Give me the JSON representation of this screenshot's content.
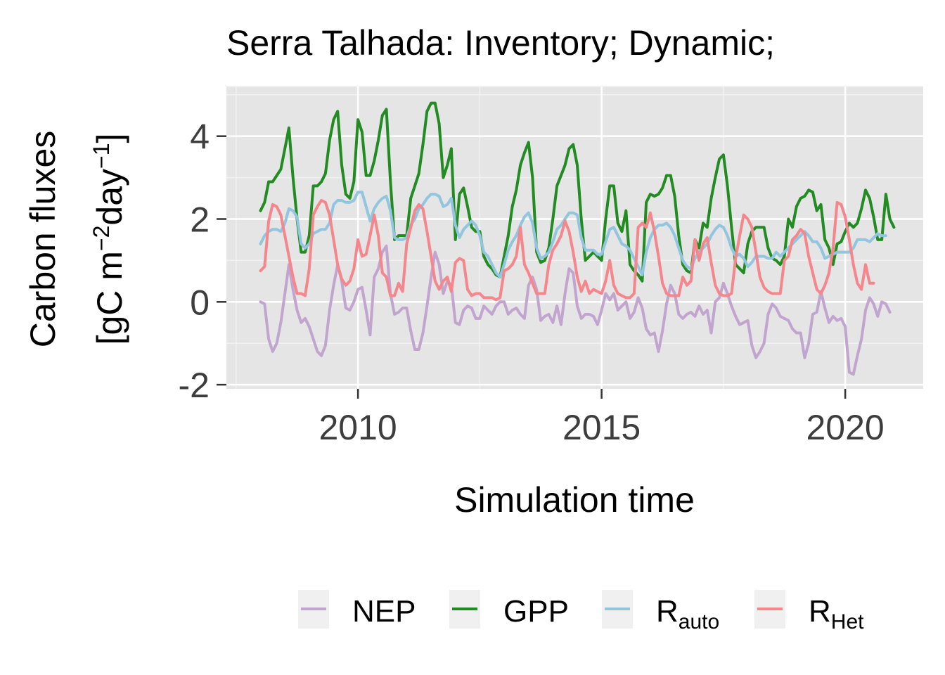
{
  "chart_data": {
    "type": "line",
    "title": "Serra Talhada: Inventory; Dynamic;",
    "xlabel": "Simulation time",
    "ylabel_line1": "Carbon fluxes",
    "ylabel_line2": {
      "pre": "[gC m",
      "sup1": "−2",
      "mid": "day",
      "sup2": "−1",
      "post": "]"
    },
    "xlim": [
      2007.3,
      2021.6
    ],
    "ylim": [
      -2.1,
      5.2
    ],
    "x_ticks": [
      2010,
      2015,
      2020
    ],
    "x_tick_labels": [
      "2010",
      "2015",
      "2020"
    ],
    "y_ticks": [
      -2,
      0,
      2,
      4
    ],
    "y_tick_labels": [
      "-2",
      "0",
      "2",
      "4"
    ],
    "grid": true,
    "legend_position": "bottom",
    "x_start": 2008.0,
    "x_step": 0.0833333,
    "series": [
      {
        "name": "NEP",
        "color": "#c2a5cf",
        "legend": {
          "main": "NEP",
          "sub": ""
        },
        "values": [
          0.0,
          -0.05,
          -0.9,
          -1.2,
          -1.0,
          -0.5,
          0.2,
          0.9,
          0.3,
          -0.2,
          -0.5,
          -0.4,
          -0.6,
          -0.9,
          -1.2,
          -1.3,
          -1.05,
          -0.2,
          0.4,
          0.9,
          0.5,
          -0.15,
          -0.2,
          0.0,
          0.3,
          0.35,
          -0.2,
          -0.8,
          0.6,
          0.8,
          1.2,
          1.35,
          0.2,
          -0.3,
          -0.25,
          -0.15,
          -0.15,
          -0.7,
          -1.15,
          -1.15,
          -0.75,
          -0.1,
          0.6,
          1.2,
          0.9,
          0.2,
          0.5,
          0.4,
          -0.5,
          -0.55,
          -0.2,
          -0.1,
          -0.15,
          -0.4,
          -0.4,
          -0.1,
          -0.2,
          -0.3,
          -0.1,
          0.0,
          0.0,
          -0.3,
          -0.2,
          -0.15,
          -0.3,
          -0.4,
          0.4,
          0.6,
          0.3,
          -0.45,
          -0.35,
          -0.3,
          -0.5,
          -0.1,
          -0.55,
          0.2,
          0.8,
          0.7,
          -0.1,
          -0.4,
          -0.3,
          -0.3,
          -0.35,
          -0.55,
          -0.2,
          0.2,
          0.05,
          0.2,
          -0.2,
          -0.1,
          0.0,
          -0.4,
          -0.25,
          0.1,
          -0.15,
          -0.65,
          -0.8,
          -0.75,
          -1.2,
          -0.7,
          -0.05,
          0.4,
          0.2,
          -0.3,
          -0.4,
          -0.3,
          -0.25,
          -0.35,
          -0.1,
          -0.3,
          -0.2,
          -0.75,
          0.0,
          0.1,
          0.45,
          0.2,
          -0.1,
          -0.35,
          -0.55,
          -0.5,
          -0.45,
          -1.05,
          -1.35,
          -1.2,
          -1.0,
          -0.3,
          -0.05,
          -0.15,
          -0.35,
          -0.4,
          -0.45,
          -0.65,
          -0.75,
          -0.75,
          -1.35,
          -1.0,
          -0.3,
          -0.25,
          0.25,
          -0.15,
          -0.5,
          -0.35,
          -0.45,
          -0.4,
          -0.6,
          -1.7,
          -1.75,
          -1.3,
          -0.9,
          -0.2,
          0.1,
          -0.05,
          -0.35,
          0.0,
          -0.05,
          -0.25
        ]
      },
      {
        "name": "GPP",
        "color": "#228b22",
        "legend": {
          "main": "GPP",
          "sub": ""
        },
        "values": [
          2.2,
          2.4,
          2.9,
          2.9,
          3.05,
          3.2,
          3.7,
          4.2,
          3.0,
          2.0,
          1.2,
          1.2,
          1.6,
          2.8,
          2.8,
          2.9,
          3.1,
          3.9,
          4.4,
          4.6,
          3.3,
          2.6,
          2.5,
          2.9,
          4.4,
          4.1,
          3.05,
          3.05,
          3.4,
          3.9,
          4.5,
          4.65,
          2.9,
          1.5,
          1.6,
          1.6,
          1.6,
          2.5,
          2.8,
          3.1,
          3.8,
          4.6,
          4.8,
          4.8,
          4.3,
          3.0,
          3.3,
          3.7,
          1.5,
          2.6,
          2.75,
          2.3,
          1.8,
          1.7,
          1.7,
          1.1,
          0.9,
          0.8,
          0.65,
          0.6,
          1.1,
          1.6,
          2.3,
          2.7,
          3.3,
          3.6,
          3.85,
          3.0,
          1.2,
          0.95,
          1.0,
          1.3,
          2.0,
          2.8,
          3.05,
          3.3,
          3.7,
          3.8,
          3.3,
          2.0,
          1.0,
          1.1,
          1.2,
          1.1,
          1.0,
          2.0,
          2.8,
          2.8,
          1.9,
          1.7,
          2.2,
          0.9,
          0.75,
          0.65,
          0.5,
          2.4,
          2.6,
          2.55,
          2.6,
          2.75,
          3.05,
          3.05,
          2.55,
          1.6,
          0.9,
          0.75,
          0.7,
          1.5,
          1.3,
          1.9,
          1.8,
          2.5,
          3.0,
          3.45,
          3.55,
          2.8,
          1.8,
          0.9,
          0.8,
          0.7,
          1.4,
          1.7,
          1.8,
          1.8,
          1.8,
          1.3,
          1.05,
          1.0,
          0.9,
          1.1,
          2.0,
          1.8,
          2.3,
          2.5,
          2.55,
          2.7,
          2.65,
          2.2,
          2.35,
          1.5,
          1.3,
          0.9,
          1.4,
          1.45,
          1.7,
          1.9,
          1.8,
          1.9,
          2.25,
          2.7,
          2.5,
          2.05,
          1.5,
          1.5,
          2.6,
          2.0,
          1.8
        ]
      },
      {
        "name": "R_auto",
        "color": "#92c5de",
        "legend": {
          "main": "R",
          "sub": "auto"
        },
        "values": [
          1.4,
          1.6,
          1.7,
          1.75,
          1.75,
          1.7,
          1.9,
          2.25,
          2.2,
          2.05,
          1.4,
          1.3,
          1.4,
          1.65,
          1.7,
          1.75,
          1.75,
          1.9,
          2.35,
          2.45,
          2.45,
          2.4,
          2.4,
          2.45,
          2.65,
          2.65,
          2.3,
          1.95,
          2.25,
          2.4,
          2.5,
          2.55,
          2.2,
          1.55,
          1.5,
          1.5,
          1.55,
          1.85,
          2.0,
          2.25,
          2.35,
          2.5,
          2.6,
          2.6,
          2.55,
          2.3,
          2.35,
          2.5,
          1.85,
          1.55,
          1.75,
          1.85,
          1.95,
          1.85,
          1.6,
          1.2,
          1.1,
          0.9,
          0.7,
          0.6,
          0.9,
          1.25,
          1.45,
          1.6,
          1.85,
          2.05,
          2.15,
          1.9,
          1.3,
          1.05,
          1.1,
          1.2,
          1.45,
          1.75,
          1.85,
          2.0,
          2.15,
          2.15,
          2.1,
          1.55,
          1.25,
          1.25,
          1.25,
          1.15,
          1.15,
          1.45,
          1.75,
          1.8,
          1.6,
          1.4,
          1.35,
          1.25,
          1.05,
          0.85,
          0.65,
          1.2,
          1.55,
          1.75,
          1.85,
          1.85,
          1.9,
          1.8,
          1.6,
          1.3,
          1.0,
          0.85,
          0.8,
          1.05,
          1.2,
          1.3,
          1.4,
          1.6,
          1.75,
          1.85,
          1.8,
          1.6,
          1.3,
          1.1,
          1.15,
          1.05,
          0.85,
          0.95,
          1.1,
          1.1,
          1.1,
          1.05,
          1.05,
          1.2,
          1.1,
          1.2,
          1.3,
          1.4,
          1.5,
          1.6,
          1.7,
          1.6,
          1.45,
          1.45,
          1.3,
          1.05,
          1.1,
          1.15,
          1.2,
          1.2,
          1.2,
          1.2,
          1.3,
          1.5,
          1.5,
          1.5,
          1.45,
          1.55,
          1.65,
          1.6,
          1.6
        ]
      },
      {
        "name": "R_Het",
        "color": "#f4868c",
        "legend": {
          "main": "R",
          "sub": "Het"
        },
        "values": [
          0.75,
          0.85,
          1.95,
          2.35,
          2.3,
          2.1,
          1.6,
          1.1,
          0.6,
          0.2,
          0.2,
          0.15,
          0.8,
          2.1,
          2.3,
          2.45,
          2.4,
          2.1,
          1.5,
          0.9,
          0.55,
          0.4,
          0.5,
          0.8,
          1.5,
          1.1,
          1.15,
          1.6,
          2.1,
          1.6,
          0.7,
          0.6,
          0.15,
          0.15,
          0.45,
          0.25,
          1.4,
          1.8,
          2.2,
          2.35,
          2.25,
          1.7,
          1.1,
          0.5,
          0.3,
          0.5,
          0.6,
          0.25,
          0.95,
          1.05,
          1.0,
          0.3,
          0.15,
          0.2,
          0.2,
          0.1,
          0.1,
          0.1,
          0.05,
          0.1,
          0.75,
          0.8,
          0.9,
          1.1,
          1.8,
          0.9,
          0.7,
          0.45,
          0.2,
          0.2,
          0.2,
          0.9,
          1.25,
          1.4,
          1.6,
          1.95,
          1.7,
          1.2,
          0.6,
          0.25,
          0.5,
          0.2,
          0.3,
          0.25,
          0.2,
          0.5,
          1.0,
          0.4,
          0.2,
          0.15,
          0.1,
          0.1,
          0.2,
          1.8,
          1.9,
          1.8,
          2.15,
          1.7,
          1.1,
          0.45,
          0.2,
          0.15,
          0.15,
          0.15,
          0.6,
          0.4,
          0.5,
          1.5,
          1.0,
          1.4,
          1.55,
          0.95,
          0.4,
          0.2,
          0.15,
          0.15,
          0.2,
          1.05,
          1.6,
          2.1,
          2.0,
          1.8,
          1.2,
          0.6,
          0.35,
          0.25,
          0.2,
          0.2,
          0.2,
          1.0,
          1.1,
          1.5,
          1.6,
          1.75,
          1.65,
          1.1,
          0.7,
          0.3,
          0.2,
          0.4,
          0.7,
          1.3,
          2.4,
          2.35,
          2.05,
          1.5,
          0.9,
          0.45,
          0.3,
          0.9,
          0.45,
          0.45
        ]
      }
    ]
  }
}
